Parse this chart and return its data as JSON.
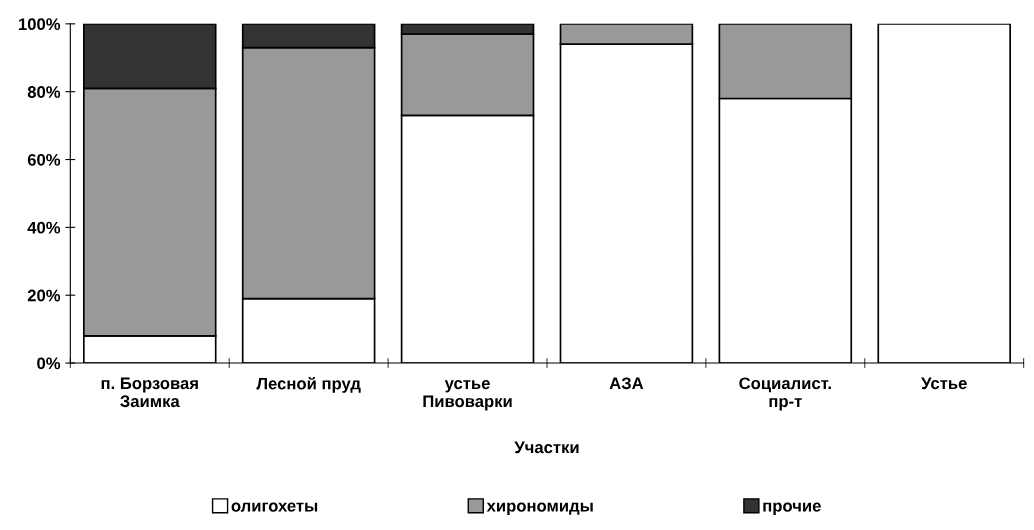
{
  "chart_data": {
    "type": "bar",
    "stacked": true,
    "xlabel": "Участки",
    "categories": [
      "п. Борзовая\nЗаимка",
      "Лесной пруд",
      "устье\nПивоварки",
      "АЗА",
      "Социалист.\nпр-т",
      "Устье"
    ],
    "series": [
      {
        "name": "олигохеты",
        "color": "#ffffff",
        "values": [
          8,
          19,
          73,
          94,
          78,
          100
        ]
      },
      {
        "name": "хирономиды",
        "color": "#999999",
        "values": [
          73,
          74,
          24,
          6,
          22,
          0
        ]
      },
      {
        "name": "прочие",
        "color": "#333333",
        "values": [
          19,
          7,
          3,
          0,
          0,
          0
        ]
      }
    ],
    "ylim": [
      0,
      100
    ],
    "yticks": [
      {
        "value": 0,
        "label": "0%"
      },
      {
        "value": 20,
        "label": "20%"
      },
      {
        "value": 40,
        "label": "40%"
      },
      {
        "value": 60,
        "label": "60%"
      },
      {
        "value": 80,
        "label": "80%"
      },
      {
        "value": 100,
        "label": "100%"
      }
    ],
    "grid": false,
    "legend": "bottom"
  }
}
